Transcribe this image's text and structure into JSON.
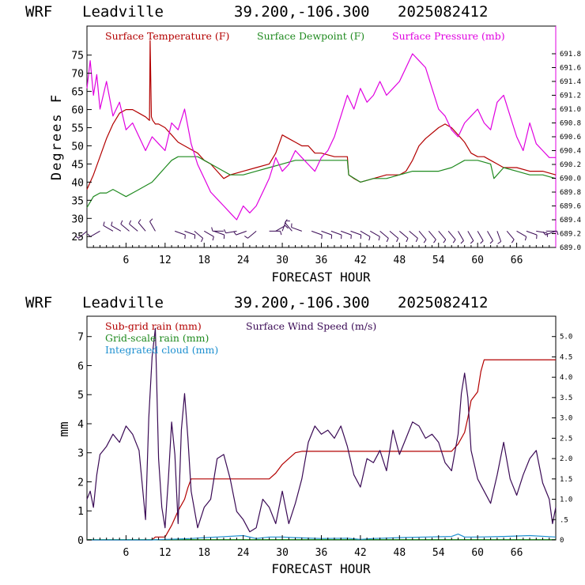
{
  "header": {
    "model": "WRF",
    "location": "Leadville",
    "coords": "39.200,-106.300",
    "init": "2025082412"
  },
  "colors": {
    "temperature": "#b30000",
    "dewpoint": "#1f8a1f",
    "pressure": "#e000e0",
    "wind": "#3a0a55",
    "subgrid_rain": "#b30000",
    "gridscale_rain": "#1f8a1f",
    "cloud": "#1e90d0",
    "wind_barbs": "#3a0a55"
  },
  "chart_data": [
    {
      "type": "line",
      "xlabel": "FORECAST HOUR",
      "ylabel": "Degrees F",
      "xlim": [
        0,
        72
      ],
      "ylim": [
        22,
        83
      ],
      "y2lim": [
        689.0,
        692.2
      ],
      "x_ticks": [
        6,
        12,
        18,
        24,
        30,
        36,
        42,
        48,
        54,
        60,
        66
      ],
      "y_ticks": [
        25,
        30,
        35,
        40,
        45,
        50,
        55,
        60,
        65,
        70,
        75
      ],
      "y2_ticks": [
        "689.0",
        "689.2",
        "689.4",
        "689.6",
        "689.8",
        "690.0",
        "690.2",
        "690.4",
        "690.6",
        "690.8",
        "691.0",
        "691.2",
        "691.4",
        "691.6",
        "691.8"
      ],
      "legend": [
        "Surface Temperature (F)",
        "Surface Dewpoint (F)",
        "Surface Pressure (mb)"
      ],
      "series": [
        {
          "name": "Surface Temperature (F)",
          "axis": "left",
          "x": [
            0,
            1,
            2,
            3,
            4,
            5,
            6,
            7,
            8,
            9,
            9.6,
            9.7,
            9.9,
            10.1,
            10.5,
            11,
            12,
            13,
            14,
            15,
            16,
            17,
            18,
            19,
            20,
            21,
            22,
            24,
            26,
            28,
            29,
            30,
            31,
            32,
            33,
            34,
            35,
            36,
            38,
            40,
            40.2,
            41,
            42,
            44,
            46,
            48,
            49,
            50,
            51,
            52,
            54,
            55,
            56,
            57,
            58,
            59,
            60,
            61,
            62,
            63,
            64,
            66,
            68,
            70,
            72
          ],
          "y": [
            38,
            42,
            47,
            52,
            56,
            59,
            60,
            60,
            59,
            58,
            57,
            79,
            58,
            57,
            56,
            56,
            55,
            53,
            51,
            50,
            49,
            48,
            46,
            45,
            43,
            41,
            42,
            43,
            44,
            45,
            48,
            53,
            52,
            51,
            50,
            50,
            48,
            48,
            47,
            47,
            42,
            41,
            40,
            41,
            42,
            42,
            43,
            46,
            50,
            52,
            55,
            56,
            55,
            53,
            51,
            48,
            47,
            47,
            46,
            45,
            44,
            44,
            43,
            43,
            42
          ]
        },
        {
          "name": "Surface Dewpoint (F)",
          "axis": "left",
          "x": [
            0,
            1,
            2,
            3,
            4,
            5,
            6,
            7,
            8,
            9,
            10,
            11,
            12,
            13,
            14,
            15,
            16,
            17,
            18,
            19,
            20,
            21,
            22,
            24,
            26,
            28,
            30,
            32,
            34,
            36,
            38,
            40,
            40.2,
            42,
            44,
            46,
            48,
            50,
            52,
            54,
            56,
            58,
            60,
            62,
            62.5,
            64,
            66,
            68,
            70,
            72
          ],
          "y": [
            33,
            36,
            37,
            37,
            38,
            37,
            36,
            37,
            38,
            39,
            40,
            42,
            44,
            46,
            47,
            47,
            47,
            47,
            46,
            45,
            44,
            43,
            42,
            42,
            43,
            44,
            45,
            46,
            46,
            46,
            46,
            46,
            42,
            40,
            41,
            41,
            42,
            43,
            43,
            43,
            44,
            46,
            46,
            45,
            41,
            44,
            43,
            42,
            42,
            41
          ]
        },
        {
          "name": "Surface Pressure (mb)",
          "axis": "right",
          "x": [
            0,
            0.5,
            1,
            1.5,
            2,
            3,
            4,
            5,
            6,
            7,
            8,
            9,
            10,
            11,
            12,
            13,
            14,
            15,
            16,
            17,
            18,
            19,
            20,
            21,
            22,
            23,
            24,
            25,
            26,
            27,
            28,
            29,
            30,
            31,
            32,
            33,
            34,
            35,
            36,
            37,
            38,
            39,
            40,
            41,
            42,
            43,
            44,
            45,
            46,
            47,
            48,
            49,
            50,
            51,
            52,
            53,
            54,
            55,
            56,
            57,
            58,
            59,
            60,
            61,
            62,
            63,
            64,
            65,
            66,
            67,
            68,
            69,
            70,
            71,
            72
          ],
          "y": [
            691.3,
            691.7,
            691.2,
            691.5,
            691.0,
            691.4,
            690.9,
            691.1,
            690.7,
            690.8,
            690.6,
            690.4,
            690.6,
            690.5,
            690.4,
            690.8,
            690.7,
            691.0,
            690.5,
            690.2,
            690.0,
            689.8,
            689.7,
            689.6,
            689.5,
            689.4,
            689.6,
            689.5,
            689.6,
            689.8,
            690.0,
            690.3,
            690.1,
            690.2,
            690.4,
            690.3,
            690.2,
            690.1,
            690.3,
            690.4,
            690.6,
            690.9,
            691.2,
            691.0,
            691.3,
            691.1,
            691.2,
            691.4,
            691.2,
            691.3,
            691.4,
            691.6,
            691.8,
            691.7,
            691.6,
            691.3,
            691.0,
            690.9,
            690.7,
            690.6,
            690.8,
            690.9,
            691.0,
            690.8,
            690.7,
            691.1,
            691.2,
            690.9,
            690.6,
            690.4,
            690.8,
            690.5,
            690.4,
            690.3,
            690.3
          ]
        }
      ],
      "wind_barbs": {
        "x": [
          0,
          2,
          4,
          5.2,
          6.5,
          7.8,
          9,
          10.5,
          13.5,
          15,
          16.5,
          18,
          19.5,
          21,
          23,
          24.5,
          26,
          28,
          29,
          30,
          31.5,
          33,
          34.5,
          36,
          37.5,
          39,
          40.5,
          42,
          43.5,
          45,
          46.5,
          48,
          49.5,
          51,
          52.5,
          54,
          55.5,
          57,
          58.5,
          60,
          61.5,
          63,
          64.5,
          66,
          67.5,
          69,
          70.5,
          72
        ],
        "direction_deg": [
          230,
          240,
          300,
          300,
          310,
          310,
          320,
          330,
          110,
          110,
          130,
          120,
          110,
          270,
          260,
          250,
          230,
          90,
          60,
          20,
          320,
          290,
          110,
          110,
          110,
          110,
          110,
          120,
          120,
          130,
          130,
          130,
          130,
          140,
          140,
          140,
          140,
          150,
          150,
          150,
          150,
          160,
          140,
          120,
          110,
          100,
          90,
          250
        ],
        "speed_kt": [
          10,
          10,
          10,
          10,
          10,
          10,
          10,
          10,
          10,
          10,
          10,
          10,
          10,
          15,
          15,
          10,
          10,
          10,
          10,
          10,
          10,
          10,
          10,
          10,
          10,
          10,
          10,
          10,
          10,
          10,
          10,
          10,
          10,
          10,
          10,
          10,
          10,
          10,
          10,
          10,
          10,
          10,
          10,
          10,
          10,
          10,
          10,
          10
        ]
      }
    },
    {
      "type": "line",
      "xlabel": "FORECAST HOUR",
      "ylabel": "mm",
      "xlim": [
        0,
        72
      ],
      "ylim": [
        0,
        7.7
      ],
      "y2lim": [
        0,
        5.5
      ],
      "x_ticks": [
        6,
        12,
        18,
        24,
        30,
        36,
        42,
        48,
        54,
        60,
        66
      ],
      "y_ticks": [
        0,
        1,
        2,
        3,
        4,
        5,
        6,
        7
      ],
      "y2_ticks": [
        "0",
        ".5",
        "1.0",
        "1.5",
        "2.0",
        "2.5",
        "3.0",
        "3.5",
        "4.0",
        "4.5",
        "5.0"
      ],
      "legend": [
        "Sub-grid rain (mm)",
        "Grid-scale rain (mm)",
        "Integrated cloud (mm)",
        "Surface Wind Speed (m/s)"
      ],
      "series": [
        {
          "name": "Sub-grid rain (mm)",
          "axis": "left",
          "x": [
            0,
            10,
            10.5,
            12,
            13,
            14,
            15,
            15.5,
            16,
            18,
            28,
            29,
            30,
            31,
            32,
            33,
            34,
            56,
            57,
            58,
            58.5,
            59,
            60,
            60.5,
            61,
            72
          ],
          "y": [
            0,
            0,
            0.1,
            0.1,
            0.5,
            1.0,
            1.4,
            1.8,
            2.1,
            2.1,
            2.1,
            2.3,
            2.6,
            2.8,
            3.0,
            3.05,
            3.05,
            3.05,
            3.3,
            3.7,
            4.2,
            4.8,
            5.1,
            5.8,
            6.2,
            6.2
          ]
        },
        {
          "name": "Grid-scale rain (mm)",
          "axis": "left",
          "x": [
            0,
            72
          ],
          "y": [
            0.01,
            0.01
          ]
        },
        {
          "name": "Integrated cloud (mm)",
          "axis": "left",
          "x": [
            0,
            10,
            12,
            14,
            16,
            18,
            20,
            24,
            26,
            28,
            30,
            32,
            36,
            40,
            42,
            44,
            48,
            52,
            56,
            57,
            58,
            60,
            64,
            68,
            72
          ],
          "y": [
            0,
            0,
            0.02,
            0.03,
            0.05,
            0.08,
            0.1,
            0.15,
            0.05,
            0.1,
            0.1,
            0.08,
            0.05,
            0.06,
            0.02,
            0.05,
            0.08,
            0.1,
            0.12,
            0.2,
            0.1,
            0.1,
            0.12,
            0.15,
            0.1
          ]
        },
        {
          "name": "Surface Wind Speed (m/s)",
          "axis": "right",
          "x": [
            0,
            0.5,
            1,
            1.5,
            2,
            3,
            4,
            5,
            6,
            7,
            8,
            9,
            9.5,
            10,
            10.5,
            11,
            11.5,
            12,
            12.5,
            13,
            13.5,
            14,
            14.5,
            15,
            15.5,
            16,
            17,
            18,
            19,
            20,
            21,
            22,
            23,
            24,
            25,
            26,
            27,
            28,
            29,
            30,
            31,
            32,
            33,
            34,
            35,
            36,
            37,
            38,
            39,
            40,
            41,
            42,
            43,
            44,
            45,
            46,
            47,
            48,
            49,
            50,
            51,
            52,
            53,
            54,
            55,
            56,
            57,
            57.5,
            58,
            58.5,
            59,
            60,
            61,
            62,
            63,
            64,
            65,
            66,
            67,
            68,
            69,
            70,
            71,
            71.5,
            72
          ],
          "y": [
            1.0,
            1.2,
            0.8,
            1.6,
            2.1,
            2.3,
            2.6,
            2.4,
            2.8,
            2.6,
            2.2,
            0.5,
            3.0,
            4.5,
            5.2,
            2.0,
            0.8,
            0.3,
            1.5,
            2.9,
            2.1,
            0.4,
            2.7,
            3.6,
            2.5,
            1.2,
            0.3,
            0.8,
            1.0,
            2.0,
            2.1,
            1.5,
            0.7,
            0.5,
            0.2,
            0.3,
            1.0,
            0.8,
            0.4,
            1.2,
            0.4,
            0.9,
            1.5,
            2.4,
            2.8,
            2.6,
            2.7,
            2.5,
            2.8,
            2.3,
            1.6,
            1.3,
            2.0,
            1.9,
            2.2,
            1.7,
            2.7,
            2.1,
            2.5,
            2.9,
            2.8,
            2.5,
            2.6,
            2.4,
            1.9,
            1.7,
            2.6,
            3.6,
            4.1,
            3.5,
            2.2,
            1.5,
            1.2,
            0.9,
            1.6,
            2.4,
            1.5,
            1.1,
            1.6,
            2.0,
            2.2,
            1.4,
            1.0,
            0.4,
            0.8
          ]
        }
      ]
    }
  ]
}
